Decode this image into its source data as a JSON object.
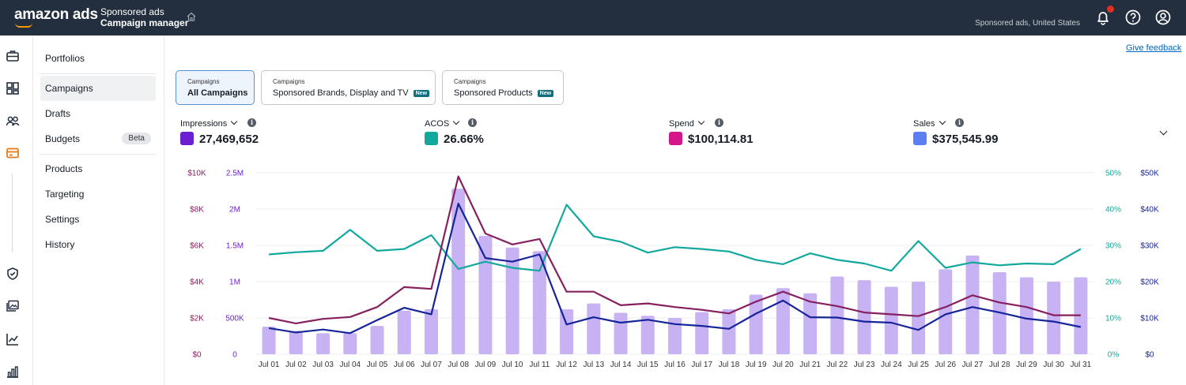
{
  "header": {
    "logo_text": "amazon ads",
    "app_subtitle": "Sponsored ads",
    "app_title": "Campaign manager",
    "account_label": "Sponsored ads, United States",
    "icons": [
      "home-icon",
      "bell-icon",
      "help-icon",
      "user-icon"
    ],
    "notification_color": "#e0301e"
  },
  "rail_icons": [
    "briefcase-icon",
    "dashboard-icon",
    "audience-icon",
    "billing-icon",
    "shield-icon",
    "media-icon",
    "analytics-icon",
    "reports-icon"
  ],
  "nav": {
    "items": [
      {
        "label": "Portfolios"
      },
      {
        "label": "Campaigns",
        "active": true
      },
      {
        "label": "Drafts"
      },
      {
        "label": "Budgets",
        "badge": "Beta"
      },
      {
        "label": "Products"
      },
      {
        "label": "Targeting"
      },
      {
        "label": "Settings"
      },
      {
        "label": "History"
      }
    ]
  },
  "feedback_link": "Give feedback",
  "tabs": [
    {
      "sub": "Campaigns",
      "label": "All Campaigns",
      "active": true
    },
    {
      "sub": "Campaigns",
      "label": "Sponsored Brands, Display and TV",
      "badge": "New"
    },
    {
      "sub": "Campaigns",
      "label": "Sponsored Products",
      "badge": "New"
    }
  ],
  "metrics": [
    {
      "label": "Impressions",
      "value": "27,469,652",
      "color": "#6a1fd0"
    },
    {
      "label": "ACOS",
      "value": "26.66%",
      "color": "#13a89e"
    },
    {
      "label": "Spend",
      "value": "$100,114.81",
      "color": "#d5168a"
    },
    {
      "label": "Sales",
      "value": "$375,545.99",
      "color": "#5b7ef3"
    }
  ],
  "chart_data": {
    "type": "bar",
    "categories": [
      "Jul 01",
      "Jul 02",
      "Jul 03",
      "Jul 04",
      "Jul 05",
      "Jul 06",
      "Jul 07",
      "Jul 08",
      "Jul 09",
      "Jul 10",
      "Jul 11",
      "Jul 12",
      "Jul 13",
      "Jul 14",
      "Jul 15",
      "Jul 16",
      "Jul 17",
      "Jul 18",
      "Jul 19",
      "Jul 20",
      "Jul 21",
      "Jul 22",
      "Jul 23",
      "Jul 24",
      "Jul 25",
      "Jul 26",
      "Jul 27",
      "Jul 28",
      "Jul 29",
      "Jul 30",
      "Jul 31"
    ],
    "axes": {
      "spend": {
        "ticks": [
          "$0",
          "$2K",
          "$4K",
          "$6K",
          "$8K",
          "$10K"
        ],
        "range": [
          0,
          10000
        ],
        "color": "#86205f"
      },
      "impressions": {
        "ticks": [
          "0",
          "500K",
          "1M",
          "1.5M",
          "2M",
          "2.5M"
        ],
        "range": [
          0,
          2500000
        ],
        "color": "#6a1fd0"
      },
      "acos": {
        "ticks": [
          "0%",
          "10%",
          "20%",
          "30%",
          "40%",
          "50%"
        ],
        "range": [
          0,
          50
        ],
        "color": "#13a89e"
      },
      "sales": {
        "ticks": [
          "$0",
          "$10K",
          "$20K",
          "$30K",
          "$40K",
          "$50K"
        ],
        "range": [
          0,
          50000
        ],
        "color": "#16249a"
      }
    },
    "grid": true,
    "series": [
      {
        "name": "Impressions",
        "kind": "bar",
        "axis": "impressions",
        "color": "#c7b2f3",
        "values": [
          380000,
          320000,
          290000,
          290000,
          390000,
          600000,
          620000,
          2280000,
          1630000,
          1470000,
          1420000,
          620000,
          700000,
          570000,
          530000,
          500000,
          580000,
          620000,
          820000,
          910000,
          840000,
          1070000,
          1020000,
          930000,
          1000000,
          1170000,
          1360000,
          1130000,
          1060000,
          1000000,
          1060000
        ]
      },
      {
        "name": "ACOS",
        "kind": "line",
        "axis": "acos",
        "color": "#13a89e",
        "values": [
          27.5,
          28.1,
          28.5,
          34.3,
          28.5,
          29.0,
          32.8,
          23.5,
          25.5,
          23.8,
          23.0,
          41.2,
          32.5,
          31.0,
          28.0,
          29.5,
          29.0,
          28.3,
          26.0,
          24.8,
          27.8,
          26.0,
          25.0,
          23.0,
          31.2,
          23.8,
          25.3,
          24.5,
          25.0,
          24.8,
          29.0
        ]
      },
      {
        "name": "Spend",
        "kind": "line",
        "axis": "spend",
        "color": "#86205f",
        "values": [
          2000,
          1700,
          1950,
          2050,
          2600,
          3700,
          3600,
          9800,
          6650,
          6050,
          6350,
          3450,
          3450,
          2700,
          2800,
          2600,
          2450,
          2250,
          2900,
          3450,
          2900,
          2650,
          2300,
          2200,
          2100,
          2600,
          3250,
          2850,
          2600,
          2150,
          2150
        ]
      },
      {
        "name": "Sales",
        "kind": "line",
        "axis": "sales",
        "color": "#16249a",
        "values": [
          7200,
          6000,
          6800,
          5800,
          9400,
          12800,
          11000,
          41500,
          26500,
          25500,
          27500,
          8200,
          10200,
          8700,
          9500,
          8300,
          7800,
          7000,
          11200,
          14800,
          10200,
          10100,
          9000,
          8700,
          6700,
          11000,
          13000,
          11500,
          9800,
          9000,
          7500
        ]
      }
    ]
  }
}
